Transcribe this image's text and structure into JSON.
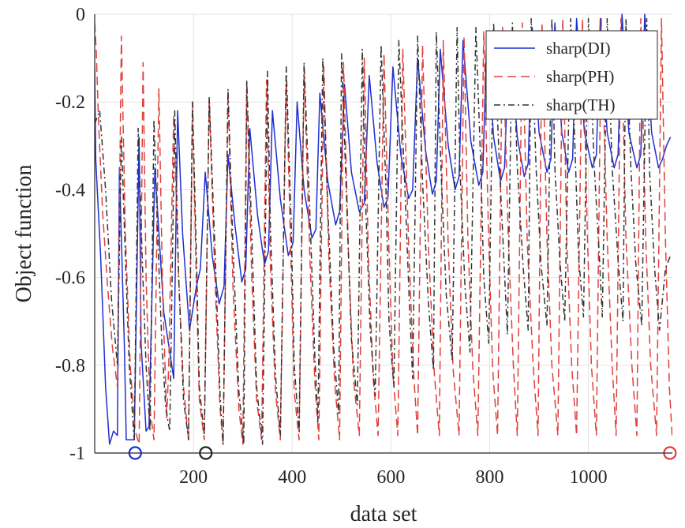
{
  "chart_data": {
    "type": "line",
    "title": "",
    "xlabel": "data set",
    "ylabel": "Object function",
    "xlim": [
      0,
      1170
    ],
    "ylim": [
      -1,
      0
    ],
    "xticks": [
      200,
      400,
      600,
      800,
      1000
    ],
    "xtick_labels": [
      "200",
      "400",
      "600",
      "800",
      "1000"
    ],
    "yticks": [
      0,
      -0.2,
      -0.4,
      -0.6,
      -0.8,
      -1
    ],
    "ytick_labels": [
      "0",
      "-0.2",
      "-0.4",
      "-0.6",
      "-0.8",
      "-1"
    ],
    "grid": true,
    "legend_position": "top-right",
    "series": [
      {
        "name": "sharp(DI)",
        "color": "#1f2fd0",
        "style": "solid",
        "x": [
          0,
          2,
          12,
          22,
          30,
          38,
          46,
          50,
          60,
          64,
          74,
          80,
          90,
          94,
          104,
          110,
          122,
          140,
          160,
          168,
          178,
          192,
          206,
          214,
          224,
          238,
          252,
          262,
          270,
          284,
          298,
          306,
          314,
          330,
          344,
          352,
          360,
          376,
          392,
          402,
          410,
          424,
          440,
          448,
          456,
          472,
          488,
          496,
          506,
          520,
          536,
          546,
          556,
          572,
          586,
          594,
          604,
          620,
          636,
          644,
          654,
          670,
          684,
          692,
          700,
          716,
          730,
          738,
          746,
          762,
          778,
          786,
          794,
          808,
          822,
          830,
          840,
          856,
          870,
          878,
          886,
          900,
          916,
          924,
          932,
          946,
          960,
          968,
          976,
          992,
          1008,
          1016,
          1024,
          1038,
          1052,
          1060,
          1068,
          1082,
          1098,
          1106,
          1114,
          1128,
          1142,
          1150,
          1158,
          1166
        ],
        "y": [
          -0.12,
          -0.33,
          -0.55,
          -0.85,
          -0.98,
          -0.95,
          -0.96,
          -0.35,
          -0.75,
          -0.97,
          -0.97,
          -0.97,
          -0.28,
          -0.75,
          -0.95,
          -0.94,
          -0.35,
          -0.68,
          -0.83,
          -0.22,
          -0.5,
          -0.72,
          -0.62,
          -0.58,
          -0.36,
          -0.55,
          -0.66,
          -0.62,
          -0.32,
          -0.48,
          -0.61,
          -0.58,
          -0.26,
          -0.46,
          -0.57,
          -0.54,
          -0.22,
          -0.42,
          -0.55,
          -0.52,
          -0.2,
          -0.4,
          -0.51,
          -0.49,
          -0.18,
          -0.38,
          -0.48,
          -0.45,
          -0.16,
          -0.36,
          -0.45,
          -0.43,
          -0.14,
          -0.34,
          -0.44,
          -0.42,
          -0.12,
          -0.32,
          -0.42,
          -0.4,
          -0.1,
          -0.31,
          -0.41,
          -0.38,
          -0.08,
          -0.3,
          -0.4,
          -0.37,
          -0.06,
          -0.29,
          -0.39,
          -0.36,
          -0.05,
          -0.28,
          -0.38,
          -0.35,
          -0.04,
          -0.28,
          -0.37,
          -0.34,
          -0.03,
          -0.27,
          -0.36,
          -0.33,
          -0.02,
          -0.27,
          -0.36,
          -0.33,
          -0.01,
          -0.27,
          -0.35,
          -0.32,
          -0.01,
          -0.27,
          -0.35,
          -0.32,
          0.0,
          -0.27,
          -0.35,
          -0.32,
          0.0,
          -0.27,
          -0.35,
          -0.33,
          -0.3,
          -0.28
        ]
      },
      {
        "name": "sharp(PH)",
        "color": "#e0403a",
        "style": "dashed",
        "x": [
          0,
          3,
          8,
          16,
          26,
          36,
          46,
          54,
          62,
          72,
          82,
          90,
          98,
          104,
          112,
          120,
          130,
          138,
          146,
          150,
          160,
          170,
          180,
          190,
          198,
          206,
          212,
          222,
          232,
          244,
          254,
          260,
          270,
          280,
          292,
          300,
          308,
          318,
          328,
          338,
          348,
          356,
          366,
          376,
          388,
          398,
          404,
          414,
          424,
          436,
          446,
          454,
          464,
          474,
          486,
          496,
          504,
          514,
          524,
          536,
          546,
          554,
          564,
          574,
          586,
          596,
          604,
          614,
          624,
          636,
          646,
          654,
          664,
          676,
          688,
          698,
          706,
          716,
          726,
          738,
          748,
          756,
          766,
          776,
          788,
          798,
          806,
          816,
          826,
          838,
          848,
          856,
          866,
          876,
          888,
          898,
          906,
          916,
          926,
          938,
          948,
          956,
          966,
          976,
          988,
          998,
          1006,
          1016,
          1026,
          1038,
          1048,
          1056,
          1066,
          1076,
          1088,
          1098,
          1106,
          1116,
          1126,
          1138,
          1148,
          1156,
          1164,
          1170
        ],
        "y": [
          -0.02,
          -0.08,
          -0.25,
          -0.45,
          -0.62,
          -0.76,
          -0.85,
          -0.05,
          -0.5,
          -0.8,
          -0.95,
          -0.98,
          -0.11,
          -0.6,
          -0.9,
          -0.97,
          -0.17,
          -0.65,
          -0.92,
          -0.8,
          -0.23,
          -0.6,
          -0.85,
          -0.97,
          -0.2,
          -0.62,
          -0.88,
          -0.97,
          -0.19,
          -0.62,
          -0.9,
          -0.98,
          -0.18,
          -0.62,
          -0.9,
          -0.98,
          -0.16,
          -0.6,
          -0.88,
          -0.97,
          -0.15,
          -0.58,
          -0.86,
          -0.97,
          -0.14,
          -0.58,
          -0.86,
          -0.97,
          -0.13,
          -0.56,
          -0.84,
          -0.97,
          -0.12,
          -0.55,
          -0.84,
          -0.97,
          -0.11,
          -0.55,
          -0.83,
          -0.96,
          -0.1,
          -0.54,
          -0.83,
          -0.96,
          -0.09,
          -0.54,
          -0.82,
          -0.96,
          -0.08,
          -0.53,
          -0.82,
          -0.96,
          -0.07,
          -0.53,
          -0.82,
          -0.96,
          -0.06,
          -0.53,
          -0.81,
          -0.96,
          -0.05,
          -0.52,
          -0.81,
          -0.96,
          -0.04,
          -0.52,
          -0.81,
          -0.96,
          -0.03,
          -0.52,
          -0.8,
          -0.96,
          -0.02,
          -0.52,
          -0.8,
          -0.96,
          -0.02,
          -0.51,
          -0.8,
          -0.96,
          -0.01,
          -0.51,
          -0.8,
          -0.96,
          -0.01,
          -0.51,
          -0.8,
          -0.96,
          -0.01,
          -0.51,
          -0.8,
          -0.96,
          -0.01,
          -0.51,
          -0.8,
          -0.96,
          -0.01,
          -0.51,
          -0.8,
          -0.96,
          -0.01,
          -0.51,
          -0.85,
          -0.97
        ]
      },
      {
        "name": "sharp(TH)",
        "color": "#333333",
        "style": "dashdot",
        "x": [
          0,
          10,
          22,
          34,
          46,
          54,
          62,
          70,
          80,
          88,
          96,
          104,
          112,
          120,
          128,
          136,
          144,
          152,
          162,
          170,
          180,
          190,
          198,
          206,
          212,
          222,
          232,
          244,
          254,
          260,
          270,
          280,
          292,
          302,
          308,
          318,
          328,
          340,
          350,
          356,
          366,
          376,
          388,
          398,
          404,
          414,
          424,
          436,
          446,
          452,
          462,
          472,
          484,
          494,
          500,
          510,
          520,
          532,
          542,
          548,
          558,
          568,
          580,
          590,
          596,
          606,
          616,
          628,
          638,
          644,
          654,
          664,
          676,
          686,
          692,
          702,
          712,
          724,
          734,
          740,
          750,
          760,
          772,
          782,
          788,
          798,
          808,
          820,
          830,
          836,
          846,
          856,
          868,
          878,
          884,
          894,
          904,
          916,
          926,
          932,
          942,
          952,
          964,
          974,
          980,
          990,
          1000,
          1012,
          1022,
          1028,
          1038,
          1048,
          1060,
          1070,
          1076,
          1086,
          1096,
          1108,
          1118,
          1124,
          1134,
          1144,
          1156,
          1166
        ],
        "y": [
          -0.25,
          -0.22,
          -0.4,
          -0.65,
          -0.8,
          -0.28,
          -0.55,
          -0.8,
          -0.97,
          -0.26,
          -0.55,
          -0.8,
          -0.95,
          -0.24,
          -0.52,
          -0.75,
          -0.9,
          -0.95,
          -0.22,
          -0.6,
          -0.88,
          -0.97,
          -0.2,
          -0.55,
          -0.85,
          -0.96,
          -0.19,
          -0.55,
          -0.87,
          -0.98,
          -0.17,
          -0.53,
          -0.86,
          -0.98,
          -0.15,
          -0.5,
          -0.85,
          -0.98,
          -0.13,
          -0.49,
          -0.82,
          -0.96,
          -0.12,
          -0.48,
          -0.8,
          -0.95,
          -0.11,
          -0.46,
          -0.78,
          -0.93,
          -0.1,
          -0.44,
          -0.76,
          -0.91,
          -0.09,
          -0.42,
          -0.74,
          -0.89,
          -0.08,
          -0.41,
          -0.72,
          -0.87,
          -0.07,
          -0.4,
          -0.7,
          -0.85,
          -0.06,
          -0.39,
          -0.68,
          -0.83,
          -0.05,
          -0.38,
          -0.66,
          -0.81,
          -0.04,
          -0.37,
          -0.64,
          -0.79,
          -0.03,
          -0.36,
          -0.62,
          -0.77,
          -0.03,
          -0.35,
          -0.6,
          -0.75,
          -0.02,
          -0.35,
          -0.59,
          -0.73,
          -0.02,
          -0.35,
          -0.58,
          -0.72,
          -0.01,
          -0.35,
          -0.57,
          -0.71,
          -0.01,
          -0.35,
          -0.56,
          -0.7,
          -0.01,
          -0.35,
          -0.55,
          -0.69,
          -0.01,
          -0.35,
          -0.55,
          -0.69,
          -0.01,
          -0.35,
          -0.56,
          -0.7,
          -0.01,
          -0.35,
          -0.57,
          -0.71,
          -0.01,
          -0.36,
          -0.58,
          -0.72,
          -0.58,
          -0.55
        ]
      }
    ],
    "markers": [
      {
        "x": 82,
        "y": -1,
        "color": "#1f2fd0"
      },
      {
        "x": 225,
        "y": -1,
        "color": "#222222"
      },
      {
        "x": 1165,
        "y": -1,
        "color": "#e0403a"
      }
    ]
  }
}
